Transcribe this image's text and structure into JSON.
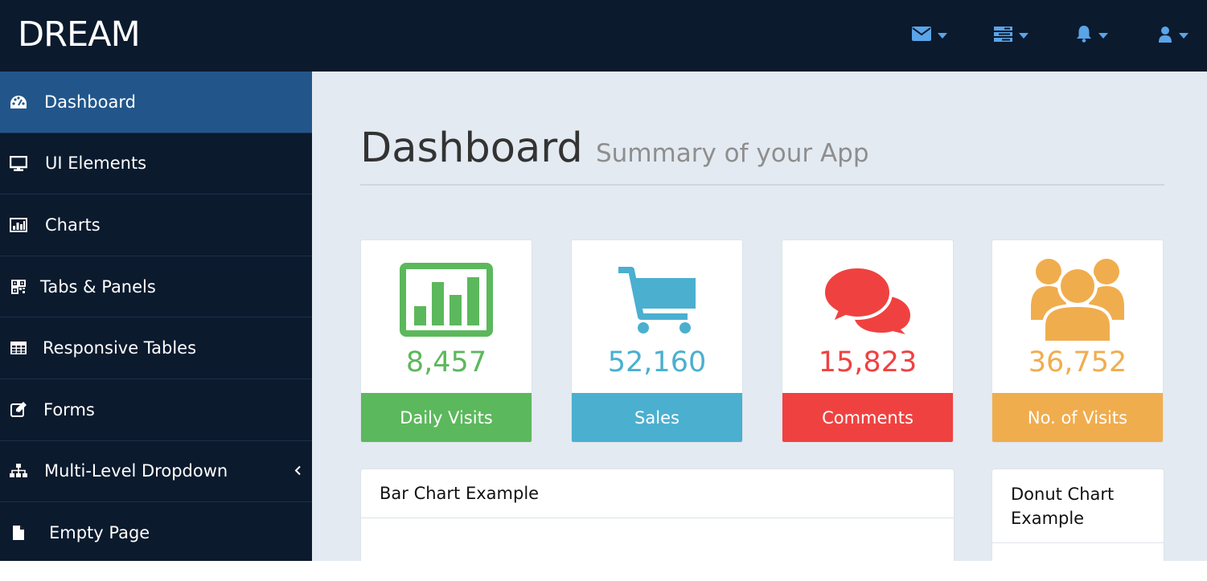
{
  "app": {
    "brand": "DREAM"
  },
  "topbar": {
    "icons": [
      "envelope-icon",
      "tasks-icon",
      "bell-icon",
      "user-icon"
    ],
    "accent": "#5aa4e8",
    "background": "#0b1a2d"
  },
  "sidebar": {
    "items": [
      {
        "label": "Dashboard",
        "icon": "dashboard-icon",
        "active": true
      },
      {
        "label": "UI Elements",
        "icon": "desktop-icon"
      },
      {
        "label": "Charts",
        "icon": "bar-chart-icon"
      },
      {
        "label": "Tabs & Panels",
        "icon": "qrcode-icon"
      },
      {
        "label": "Responsive Tables",
        "icon": "table-icon"
      },
      {
        "label": "Forms",
        "icon": "edit-icon"
      },
      {
        "label": "Multi-Level Dropdown",
        "icon": "sitemap-icon",
        "has_submenu": true
      },
      {
        "label": "Empty Page",
        "icon": "file-icon"
      }
    ],
    "active_color": "#22568b"
  },
  "header": {
    "title": "Dashboard",
    "subtitle": "Summary of your App"
  },
  "stats": [
    {
      "value": "8,457",
      "label": "Daily Visits",
      "icon": "bar-chart-icon",
      "color": "#5cb85c"
    },
    {
      "value": "52,160",
      "label": "Sales",
      "icon": "shopping-cart-icon",
      "color": "#4bafd0"
    },
    {
      "value": "15,823",
      "label": "Comments",
      "icon": "comments-icon",
      "color": "#ef4240"
    },
    {
      "value": "36,752",
      "label": "No. of Visits",
      "icon": "users-icon",
      "color": "#f0ad4e"
    }
  ],
  "panels": {
    "bar_chart_title": "Bar Chart Example",
    "donut_chart_title": "Donut Chart Example"
  }
}
